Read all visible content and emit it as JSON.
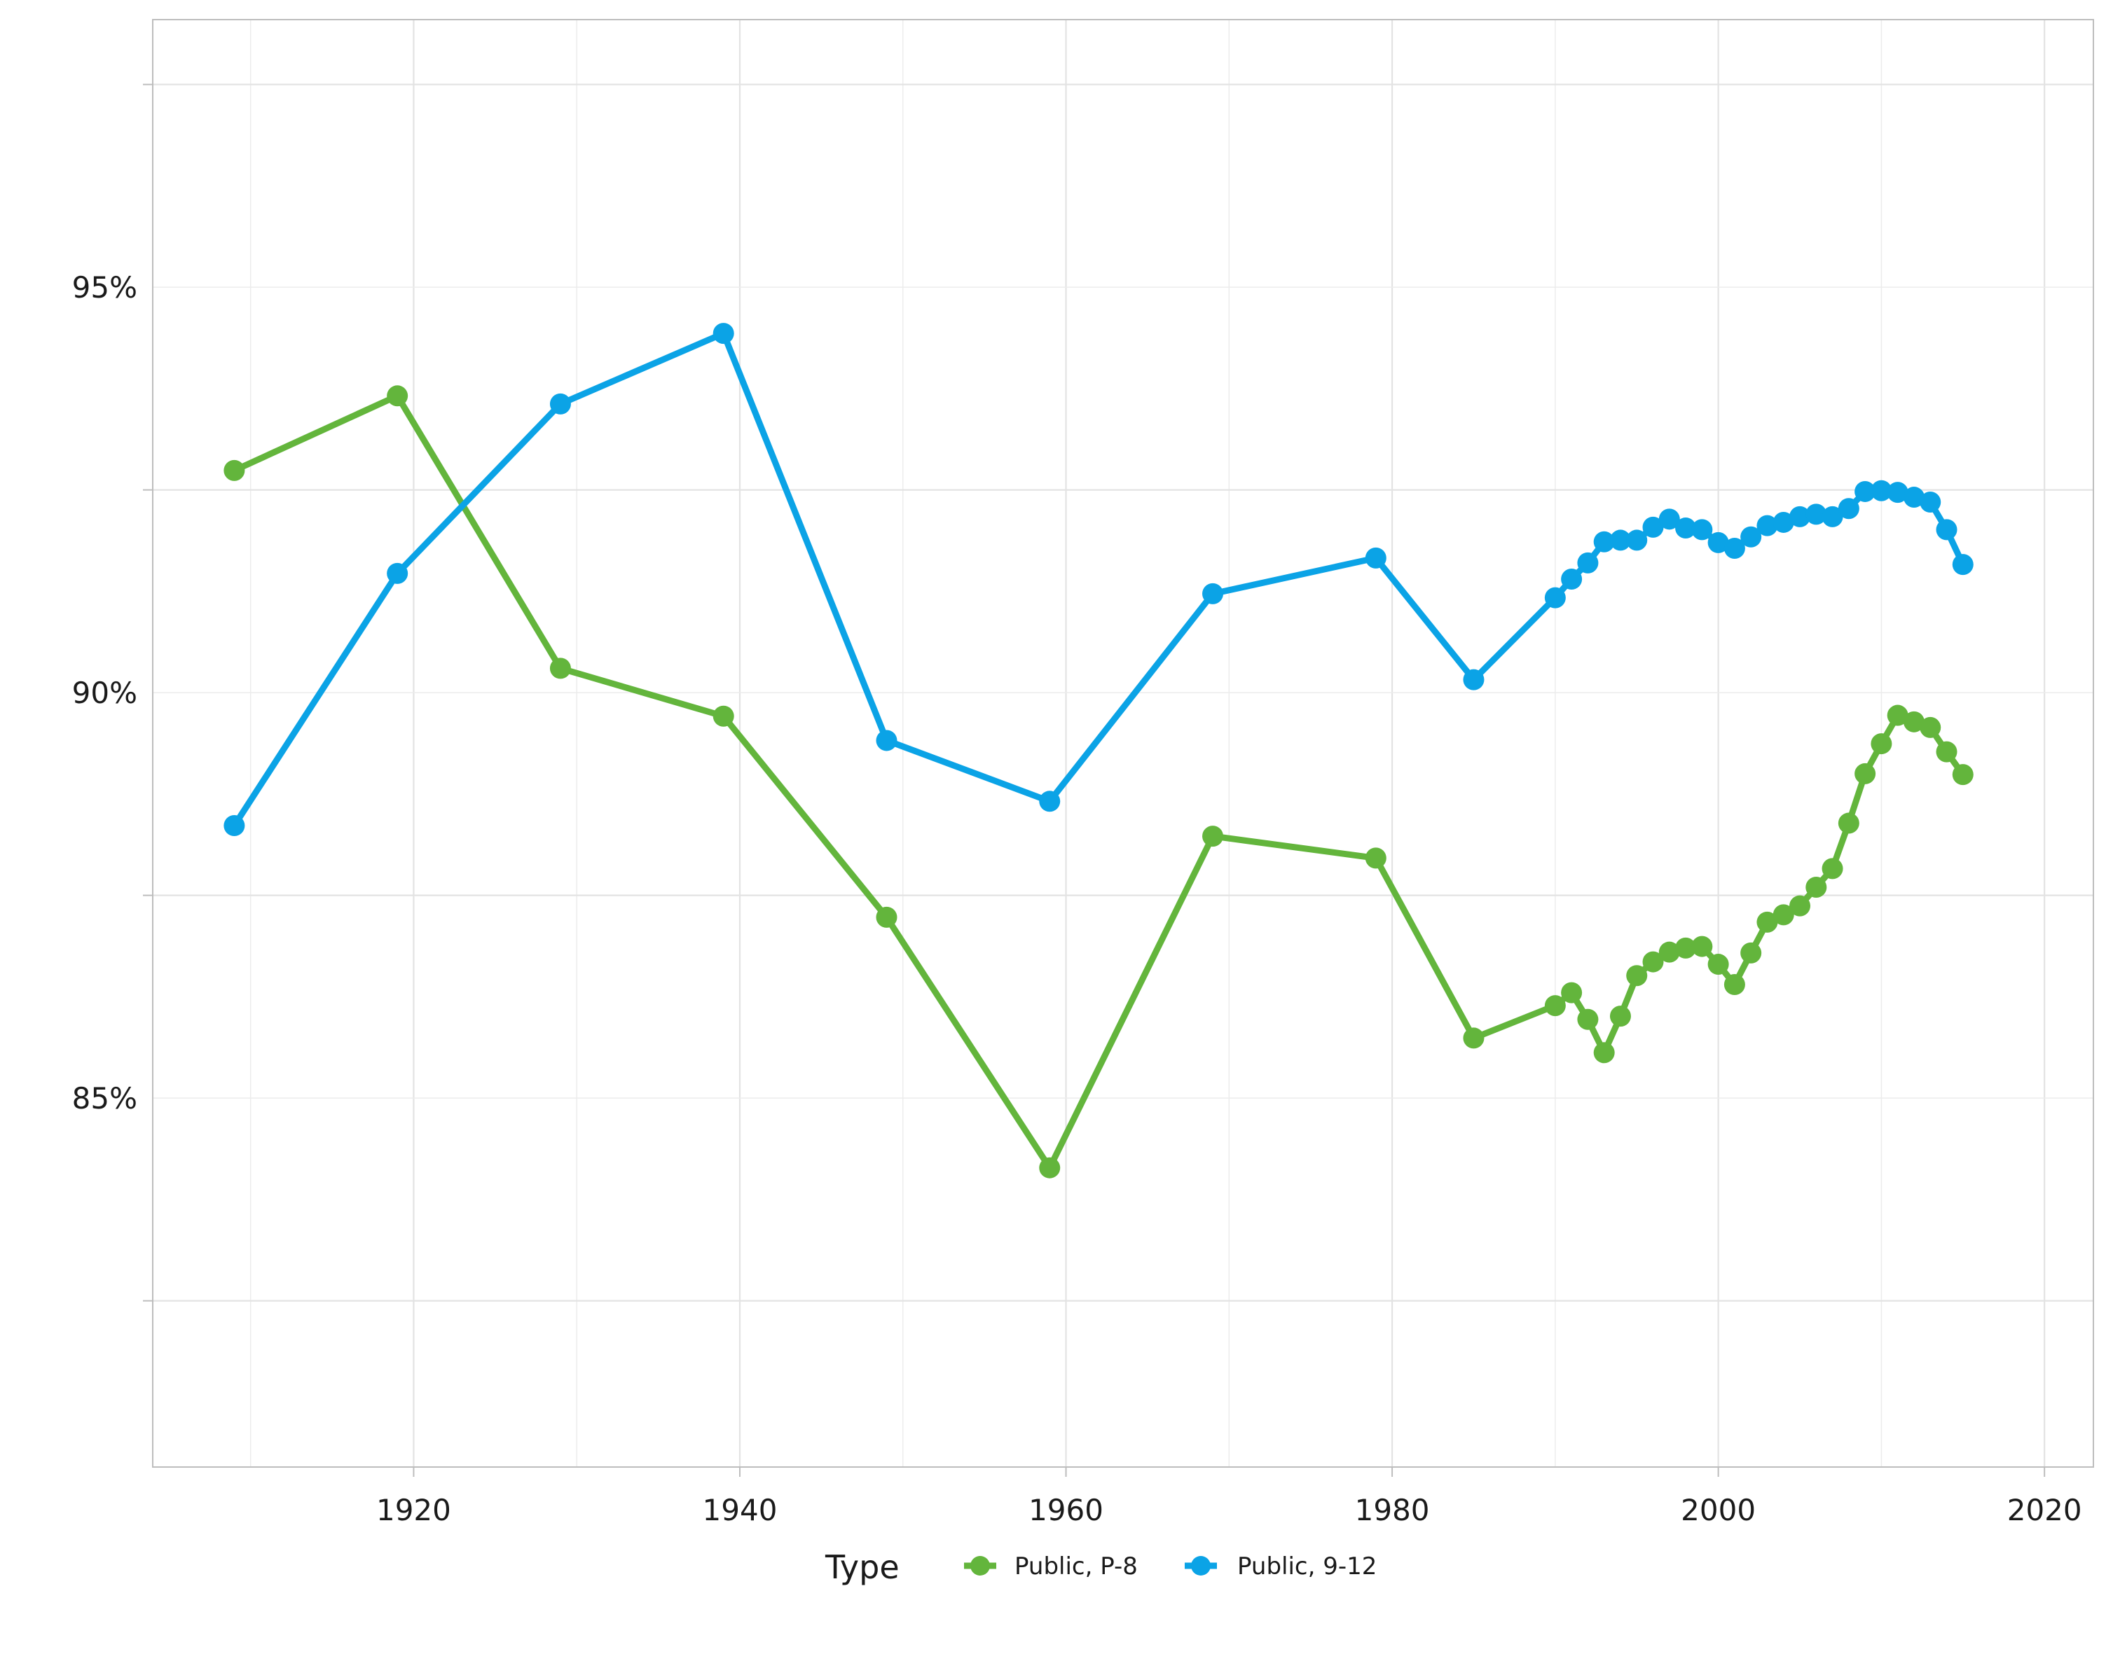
{
  "chart_data": {
    "type": "line",
    "title": "",
    "xlabel": "",
    "ylabel": "",
    "x_ticks": [
      1920,
      1940,
      1960,
      1980,
      2000,
      2020
    ],
    "y_ticks": [
      0.85,
      0.9,
      0.95
    ],
    "y_tick_labels": [
      "85%",
      "90%",
      "95%"
    ],
    "x_ticks_labels": [
      "1920",
      "1940",
      "1960",
      "1980",
      "2000",
      "2020"
    ],
    "xlim": [
      1904,
      2023
    ],
    "ylim": [
      0.8045,
      0.983
    ],
    "grid": true,
    "legend": {
      "title": "Type",
      "position": "bottom",
      "entries": [
        "Public, P-8",
        "Public, 9-12"
      ]
    },
    "series": [
      {
        "name": "Public, P-8",
        "color": "#63b53c",
        "points": [
          [
            1909,
            0.9274
          ],
          [
            1919,
            0.9366
          ],
          [
            1929,
            0.903
          ],
          [
            1939,
            0.8971
          ],
          [
            1949,
            0.8723
          ],
          [
            1959,
            0.8414
          ],
          [
            1969,
            0.8823
          ],
          [
            1979,
            0.8796
          ],
          [
            1985,
            0.8574
          ],
          [
            1990,
            0.8614
          ],
          [
            1991,
            0.863
          ],
          [
            1992,
            0.8597
          ],
          [
            1993,
            0.8556
          ],
          [
            1994,
            0.8601
          ],
          [
            1995,
            0.8651
          ],
          [
            1996,
            0.8668
          ],
          [
            1997,
            0.868
          ],
          [
            1998,
            0.8685
          ],
          [
            1999,
            0.8687
          ],
          [
            2000,
            0.8665
          ],
          [
            2001,
            0.864
          ],
          [
            2002,
            0.8679
          ],
          [
            2003,
            0.8717
          ],
          [
            2004,
            0.8726
          ],
          [
            2005,
            0.8737
          ],
          [
            2006,
            0.876
          ],
          [
            2007,
            0.8783
          ],
          [
            2008,
            0.8839
          ],
          [
            2009,
            0.89
          ],
          [
            2010,
            0.8937
          ],
          [
            2011,
            0.8972
          ],
          [
            2012,
            0.8964
          ],
          [
            2013,
            0.8957
          ],
          [
            2014,
            0.8927
          ],
          [
            2015,
            0.8899
          ]
        ]
      },
      {
        "name": "Public, 9-12",
        "color": "#0ba3e6",
        "points": [
          [
            1909,
            0.8836
          ],
          [
            1919,
            0.9147
          ],
          [
            1929,
            0.9356
          ],
          [
            1939,
            0.9443
          ],
          [
            1949,
            0.8941
          ],
          [
            1959,
            0.8866
          ],
          [
            1969,
            0.9122
          ],
          [
            1979,
            0.9166
          ],
          [
            1985,
            0.9016
          ],
          [
            1990,
            0.9117
          ],
          [
            1991,
            0.914
          ],
          [
            1992,
            0.916
          ],
          [
            1993,
            0.9186
          ],
          [
            1994,
            0.9188
          ],
          [
            1995,
            0.9188
          ],
          [
            1996,
            0.9204
          ],
          [
            1997,
            0.9214
          ],
          [
            1998,
            0.9203
          ],
          [
            1999,
            0.9201
          ],
          [
            2000,
            0.9185
          ],
          [
            2001,
            0.9178
          ],
          [
            2002,
            0.9192
          ],
          [
            2003,
            0.9206
          ],
          [
            2004,
            0.921
          ],
          [
            2005,
            0.9217
          ],
          [
            2006,
            0.922
          ],
          [
            2007,
            0.9217
          ],
          [
            2008,
            0.9227
          ],
          [
            2009,
            0.9248
          ],
          [
            2010,
            0.9249
          ],
          [
            2011,
            0.9247
          ],
          [
            2012,
            0.9241
          ],
          [
            2013,
            0.9235
          ],
          [
            2014,
            0.9201
          ],
          [
            2015,
            0.9158
          ]
        ]
      }
    ]
  }
}
